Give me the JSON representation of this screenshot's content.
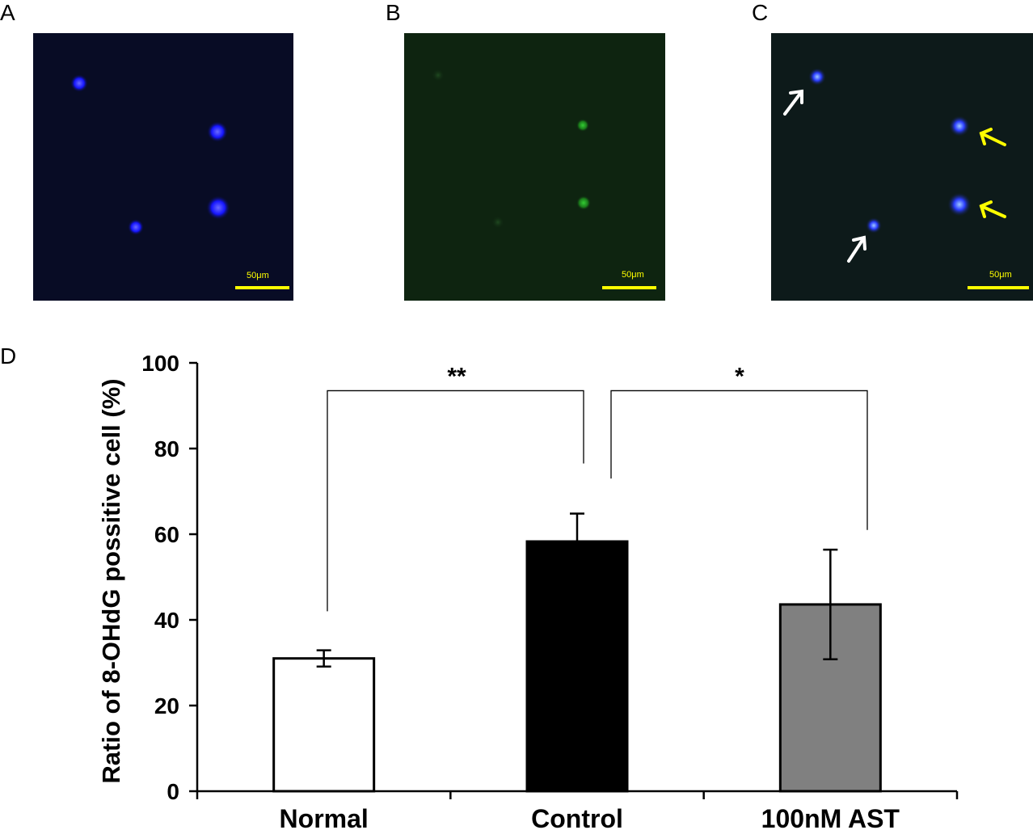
{
  "panels": [
    {
      "letter": "A",
      "channel": "blue",
      "scale_label": "50μm"
    },
    {
      "letter": "B",
      "channel": "green",
      "scale_label": "50μm"
    },
    {
      "letter": "C",
      "channel": "merge",
      "scale_label": "50μm"
    }
  ],
  "chart_panel_letter": "D",
  "chart_data": {
    "type": "bar",
    "ylabel": "Ratio of 8-OHdG possitive cell (%)",
    "xlabel": "",
    "ylim": [
      0,
      100
    ],
    "yticks": [
      0,
      20,
      40,
      60,
      80,
      100
    ],
    "categories": [
      "Normal",
      "Control",
      "100nM AST"
    ],
    "values": [
      31,
      58.3,
      43.6
    ],
    "errors": [
      1.9,
      6.5,
      12.8
    ],
    "bar_colors": [
      "#ffffff",
      "#000000",
      "#808080"
    ],
    "significance": [
      {
        "from": "Normal",
        "to": "Control",
        "label": "**"
      },
      {
        "from": "Control",
        "to": "100nM AST",
        "label": "*"
      }
    ],
    "grid": false
  },
  "colors": {
    "scale_bar": "#ffff00",
    "nucleus_blue": "#1a1aff",
    "signal_green": "#22aa22",
    "arrow_white": "#ffffff",
    "arrow_yellow": "#ffff00"
  }
}
